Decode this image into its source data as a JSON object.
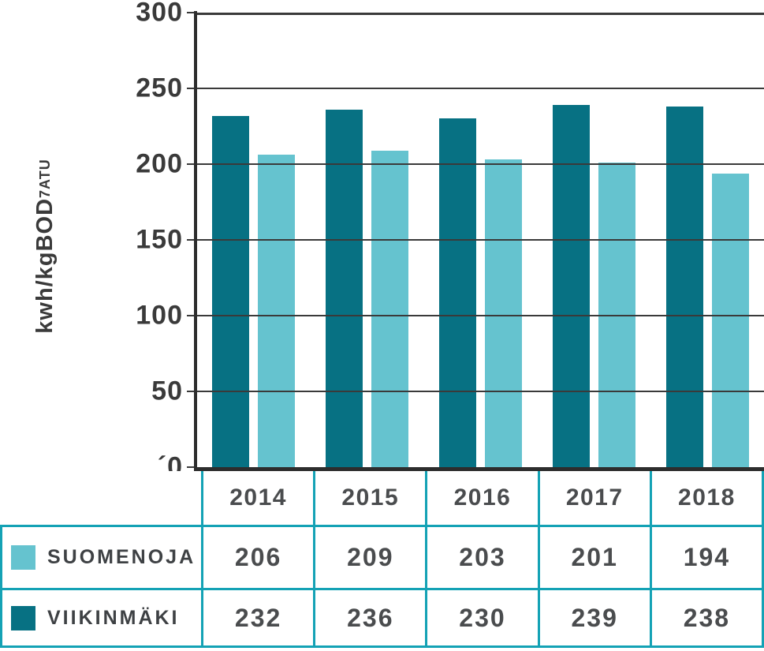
{
  "chart_data": {
    "type": "bar",
    "title": "",
    "xlabel": "",
    "ylabel": "kwh/kgBOD",
    "ylabel_subscript": "7ATU",
    "categories": [
      "2014",
      "2015",
      "2016",
      "2017",
      "2018"
    ],
    "series": [
      {
        "name": "VIIKINMÄKI",
        "color": "#077183",
        "values": [
          232,
          236,
          230,
          239,
          238
        ]
      },
      {
        "name": "SUOMENOJA",
        "color": "#65c3cf",
        "values": [
          206,
          209,
          203,
          201,
          194
        ]
      }
    ],
    "ylim": [
      0,
      300
    ],
    "ytick_step": 50,
    "ytick_labels": [
      "300",
      "250",
      "200",
      "150",
      "100",
      "50",
      "´0"
    ],
    "grid": true,
    "legend_position": "table-below-left"
  },
  "table": {
    "header_years": [
      "2014",
      "2015",
      "2016",
      "2017",
      "2018"
    ],
    "rows": [
      {
        "label": "SUOMENOJA",
        "color": "#65c3cf",
        "values": [
          "206",
          "209",
          "203",
          "201",
          "194"
        ]
      },
      {
        "label": "VIIKINMÄKI",
        "color": "#077183",
        "values": [
          "232",
          "236",
          "230",
          "239",
          "238"
        ]
      }
    ]
  },
  "colors": {
    "bar_dark": "#077183",
    "bar_light": "#65c3cf",
    "table_border": "#14a2b5",
    "gridline": "#3a3a3a",
    "axis": "#2d2d2d",
    "text": "#3a3a3a"
  }
}
